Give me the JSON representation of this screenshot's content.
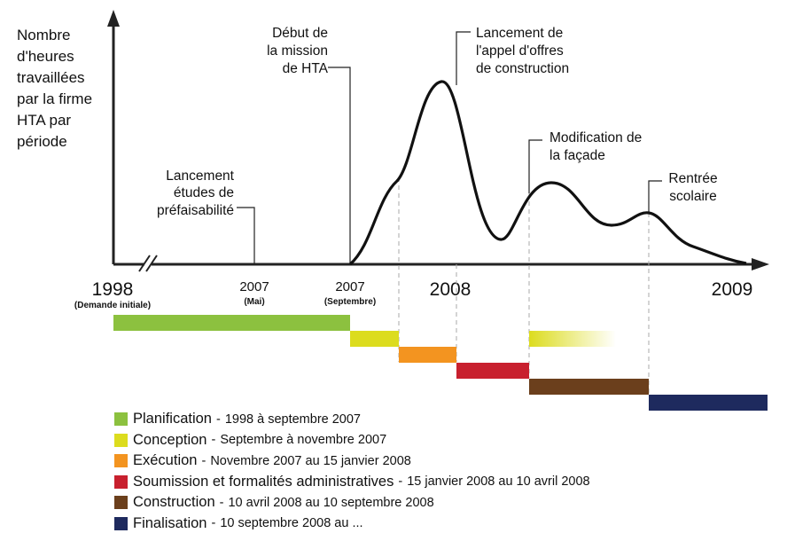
{
  "chart_data": {
    "type": "line",
    "ylabel_lines": [
      "Nombre",
      "d'heures",
      "travaillées",
      "par la firme",
      "HTA par",
      "période"
    ],
    "ticks": [
      {
        "label": "1998",
        "sub": "(Demande initiale)",
        "major": true
      },
      {
        "label": "2007",
        "sub": "(Mai)",
        "major": false
      },
      {
        "label": "2007",
        "sub": "(Septembre)",
        "major": false
      },
      {
        "label": "2008",
        "sub": "",
        "major": true
      },
      {
        "label": "2009",
        "sub": "",
        "major": true
      }
    ],
    "annotations": [
      {
        "lines": [
          "Lancement",
          "études de",
          "préfaisabilité"
        ]
      },
      {
        "lines": [
          "Début de",
          "la mission",
          "de HTA"
        ]
      },
      {
        "lines": [
          "Lancement de",
          "l'appel d'offres",
          "de construction"
        ]
      },
      {
        "lines": [
          "Modification de",
          "la façade"
        ]
      },
      {
        "lines": [
          "Rentrée",
          "scolaire"
        ]
      }
    ],
    "grid": false
  },
  "colors": {
    "planification": "#8cc13f",
    "conception": "#dcdc1e",
    "execution": "#f39420",
    "soumission": "#c8202e",
    "construction": "#6b3f1c",
    "finalisation": "#1e2a5e"
  },
  "legend": [
    {
      "name": "Planification",
      "dates": "1998 à septembre 2007",
      "color": "#8cc13f"
    },
    {
      "name": "Conception",
      "dates": "Septembre à novembre 2007",
      "color": "#dcdc1e"
    },
    {
      "name": "Exécution",
      "dates": "Novembre 2007 au 15 janvier 2008",
      "color": "#f39420"
    },
    {
      "name": "Soumission et formalités administratives",
      "dates": "15 janvier 2008 au 10 avril 2008",
      "color": "#c8202e"
    },
    {
      "name": "Construction",
      "dates": "10 avril 2008 au 10 septembre 2008",
      "color": "#6b3f1c"
    },
    {
      "name": "Finalisation",
      "dates": "10 septembre 2008 au ...",
      "color": "#1e2a5e"
    }
  ]
}
